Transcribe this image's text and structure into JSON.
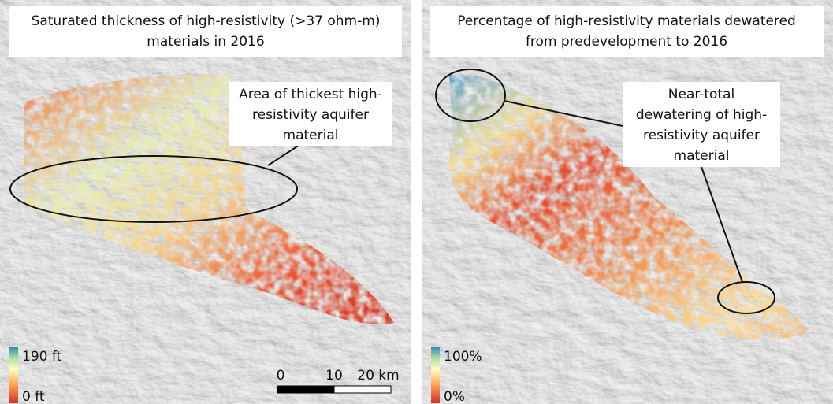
{
  "panels": [
    {
      "title": [
        "Saturated thickness of high-resistivity (>37 ohm-m)",
        "materials in 2016"
      ],
      "annotation": [
        "Area of thickest high-",
        "resistivity aquifer",
        "material"
      ],
      "legend": {
        "high": "190 ft",
        "low": "0 ft"
      },
      "scale_bar": [
        "0",
        "10",
        "20 km"
      ]
    },
    {
      "title": [
        "Percentage of high-resistivity materials dewatered",
        "from predevelopment to 2016"
      ],
      "annotation": [
        "Near-total",
        "dewatering of high-",
        "resistivity aquifer",
        "material"
      ],
      "legend": {
        "high": "100%",
        "low": "0%"
      }
    }
  ]
}
